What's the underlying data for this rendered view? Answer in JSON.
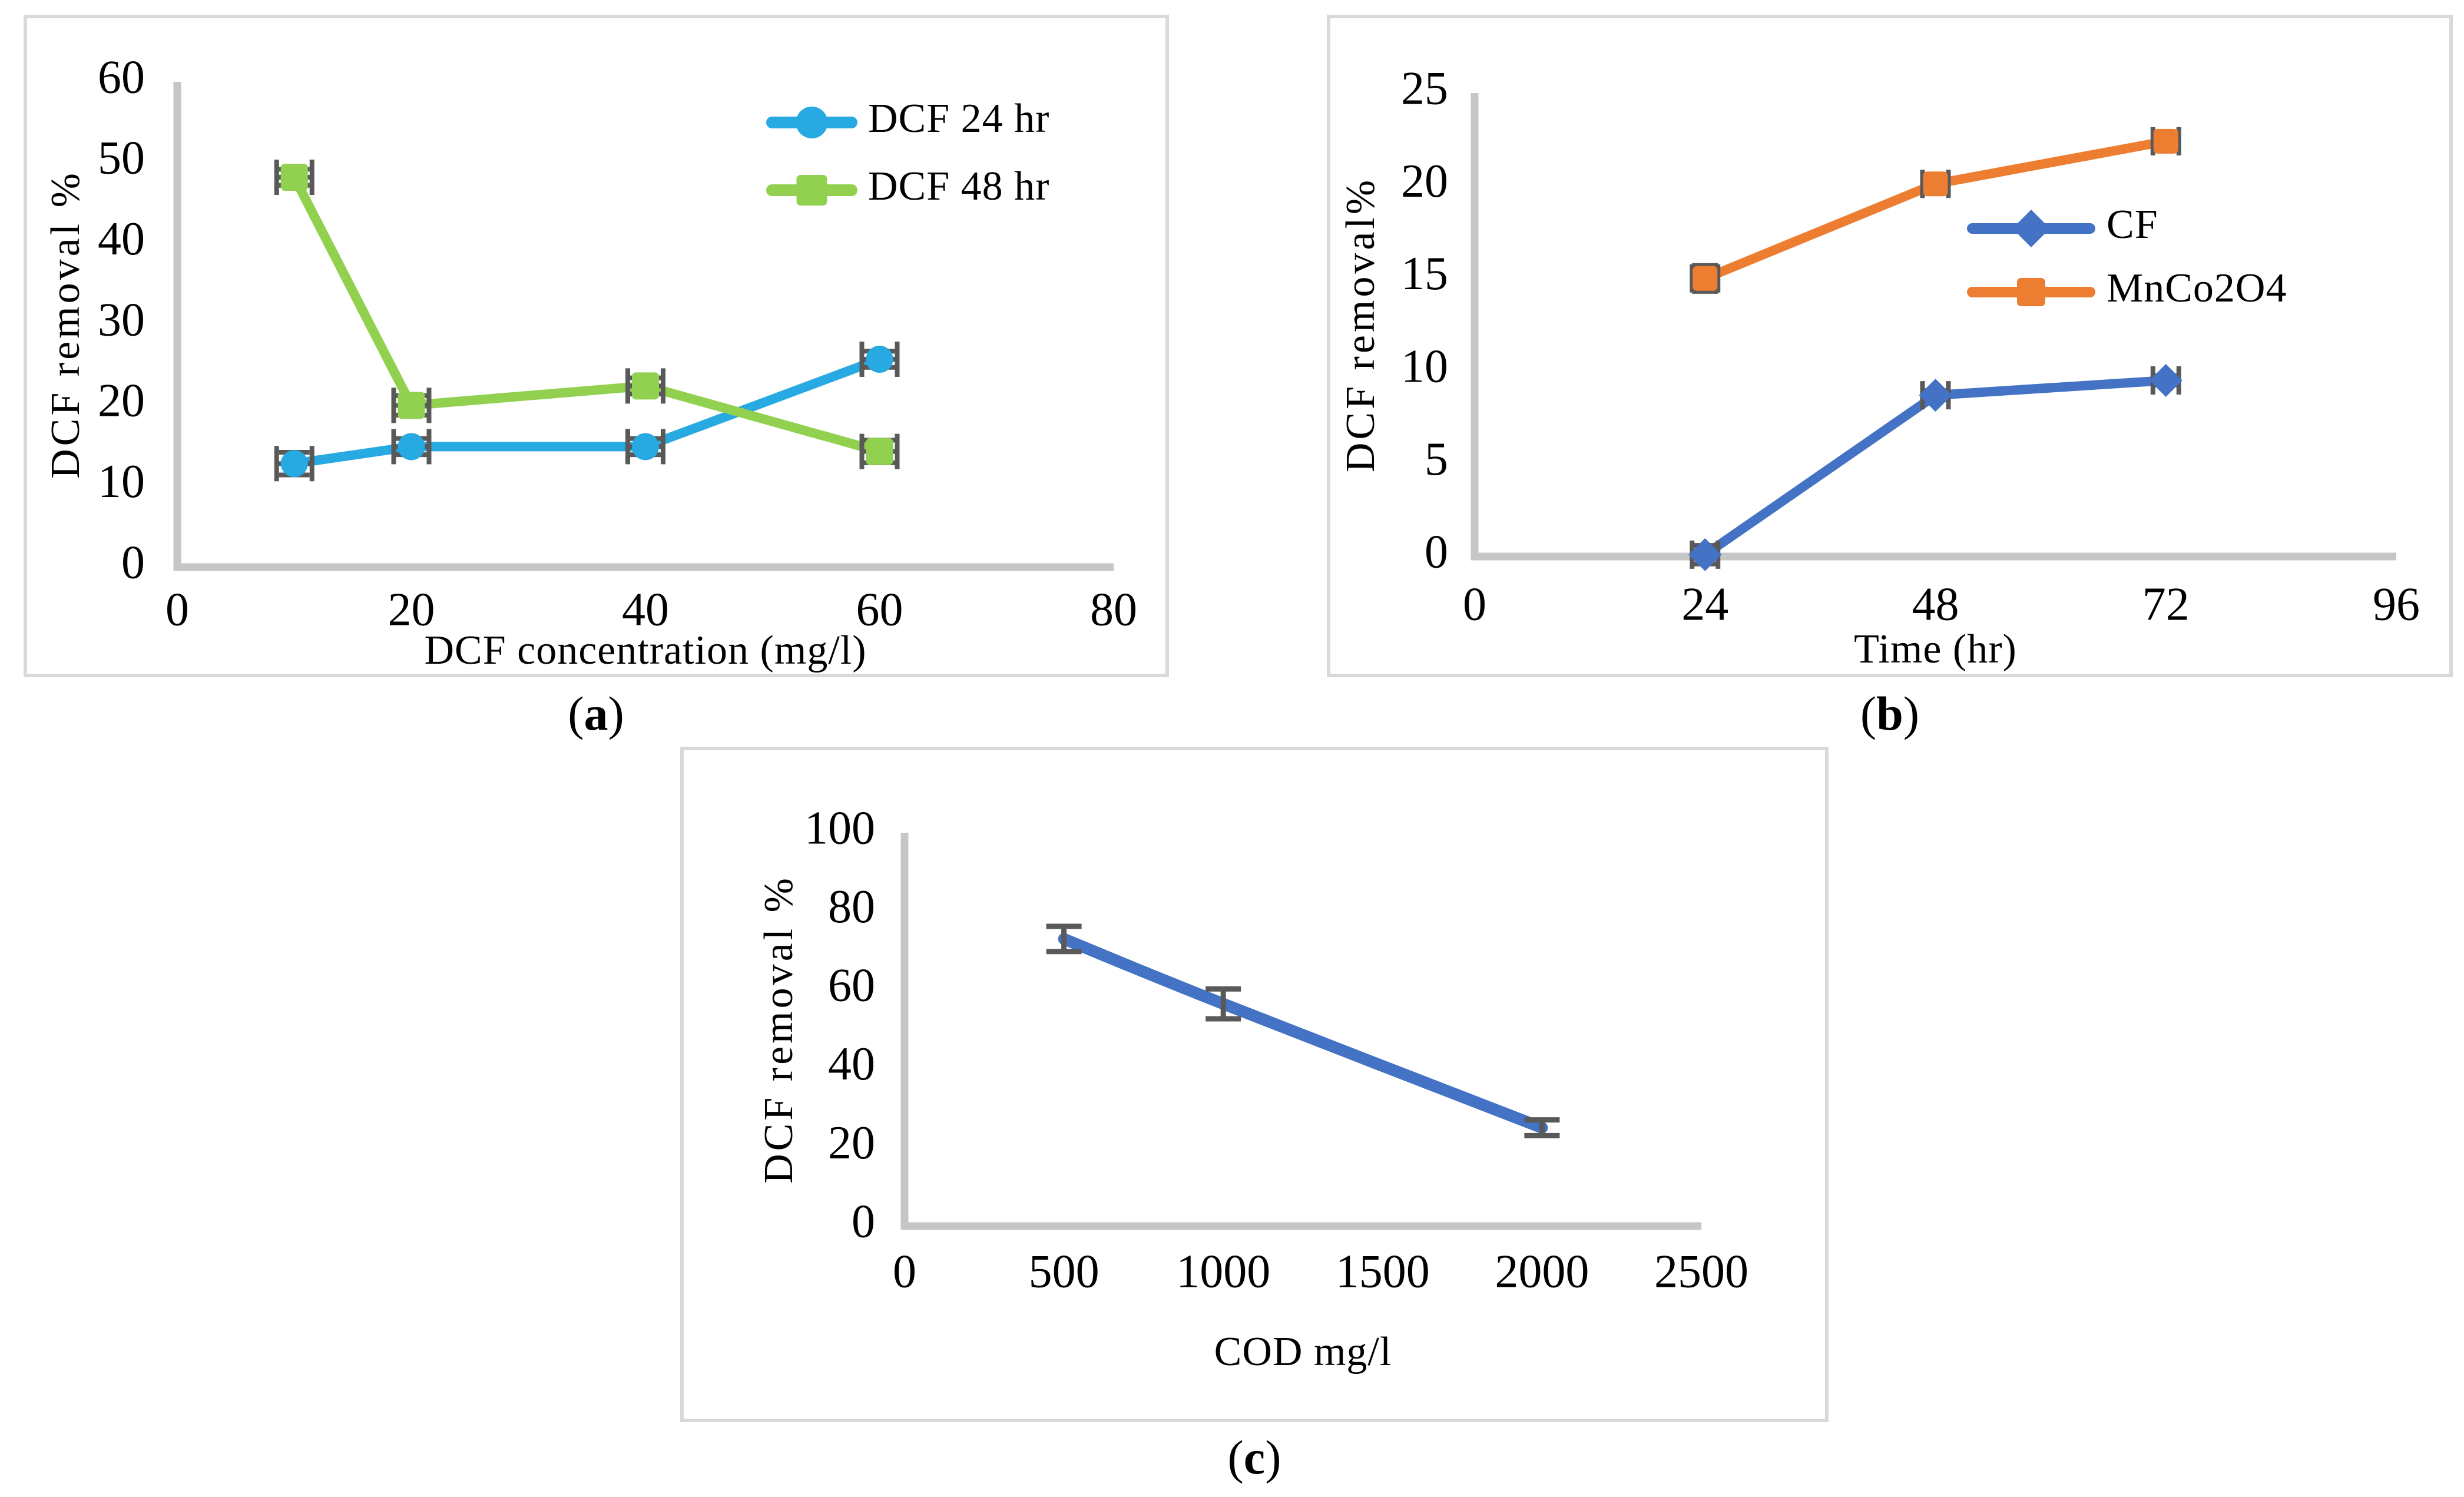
{
  "figure": {
    "captions": [
      {
        "id": "a",
        "open": "(",
        "letter": "a",
        "close": ")"
      },
      {
        "id": "b",
        "open": "(",
        "letter": "b",
        "close": ")"
      },
      {
        "id": "c",
        "open": "(",
        "letter": "c",
        "close": ")"
      }
    ]
  },
  "palette": {
    "axis": "#C6C6C6",
    "error_bar": "#595959",
    "panel_border": "#D9D9D9",
    "text": "#000000",
    "cyan_blue": "#27A9E1",
    "green": "#92D050",
    "excel_blue": "#4472C4",
    "excel_orange": "#ED7D31"
  },
  "chart_data": [
    {
      "id": "a",
      "type": "line",
      "title": "",
      "xlabel": "DCF concentration (mg/l)",
      "ylabel": "DCF removal %",
      "xlim": [
        0,
        80
      ],
      "ylim": [
        0,
        60
      ],
      "xticks": [
        0,
        20,
        40,
        60,
        80
      ],
      "yticks": [
        0,
        10,
        20,
        30,
        40,
        50,
        60
      ],
      "grid": false,
      "legend_position": "inside-top-right",
      "x": [
        10,
        20,
        40,
        60
      ],
      "series": [
        {
          "name": "DCF 24 hr",
          "color": "#27A9E1",
          "marker": "circle",
          "values": [
            12.8,
            14.9,
            14.9,
            25.7
          ],
          "yerr": [
            1.4,
            1.0,
            1.0,
            1.0
          ]
        },
        {
          "name": "DCF 48 hr",
          "color": "#92D050",
          "marker": "square",
          "values": [
            48.2,
            20.0,
            22.4,
            14.3
          ],
          "yerr": [
            1.0,
            1.2,
            1.0,
            1.4
          ]
        }
      ]
    },
    {
      "id": "b",
      "type": "line",
      "title": "",
      "xlabel": "Time (hr)",
      "ylabel": "DCF  removal%",
      "xlim": [
        0,
        96
      ],
      "ylim": [
        0,
        25
      ],
      "xticks": [
        0,
        24,
        48,
        72,
        96
      ],
      "yticks": [
        0,
        5,
        10,
        15,
        20,
        25
      ],
      "grid": false,
      "legend_position": "inside-right",
      "x": [
        24,
        48,
        72
      ],
      "series": [
        {
          "name": "CF",
          "color": "#4472C4",
          "marker": "diamond",
          "values": [
            0.1,
            8.7,
            9.5
          ],
          "yerr": [
            0.5,
            0.25,
            0.25
          ]
        },
        {
          "name": "MnCo2O4",
          "color": "#ED7D31",
          "marker": "square",
          "values": [
            15.0,
            20.1,
            22.4
          ],
          "yerr": [
            0.7,
            0.4,
            0.35
          ]
        }
      ]
    },
    {
      "id": "c",
      "type": "line",
      "title": "",
      "xlabel": "COD mg/l",
      "ylabel": "DCF removal %",
      "xlim": [
        0,
        2500
      ],
      "ylim": [
        0,
        100
      ],
      "xticks": [
        0,
        500,
        1000,
        1500,
        2000,
        2500
      ],
      "yticks": [
        0,
        20,
        40,
        60,
        80,
        100
      ],
      "grid": false,
      "legend_position": "none",
      "x": [
        500,
        1000,
        2000
      ],
      "series": [
        {
          "name": "",
          "color": "#4472C4",
          "marker": "none",
          "smooth": true,
          "values": [
            73.0,
            56.5,
            25.0
          ],
          "yerr": [
            3.2,
            3.8,
            2.0
          ]
        }
      ]
    }
  ]
}
